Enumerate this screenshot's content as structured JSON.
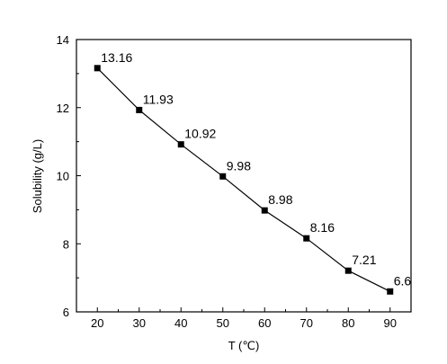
{
  "chart_data": {
    "type": "line",
    "title": "",
    "xlabel": "T (℃)",
    "ylabel": "Solubility (g/L)",
    "xlim": [
      15,
      95
    ],
    "ylim": [
      6,
      14
    ],
    "xticks": [
      20,
      30,
      40,
      50,
      60,
      70,
      80,
      90
    ],
    "yticks": [
      6,
      8,
      10,
      12,
      14
    ],
    "grid": false,
    "legend": "none",
    "marker": "square",
    "line_color": "#000000",
    "series": [
      {
        "x": [
          20,
          30,
          40,
          50,
          60,
          70,
          80,
          90
        ],
        "values": [
          13.16,
          11.93,
          10.92,
          9.98,
          8.98,
          8.16,
          7.21,
          6.6
        ],
        "labels": [
          "13.16",
          "11.93",
          "10.92",
          "9.98",
          "8.98",
          "8.16",
          "7.21",
          "6.6"
        ]
      }
    ]
  }
}
